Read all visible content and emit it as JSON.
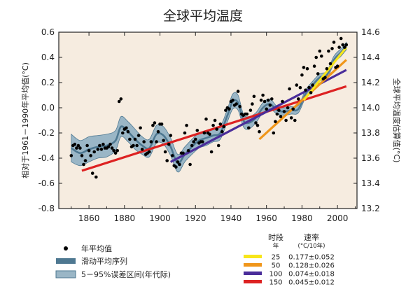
{
  "chart_data": {
    "type": "scatter",
    "title": "全球平均温度",
    "ylabel_left": "相对于1961－1990年平均值(°C)",
    "ylabel_right": "全球平均温度估算值(°C)",
    "xlabel": "",
    "xlim": [
      1843,
      2011
    ],
    "ylim_left": [
      -0.8,
      0.6
    ],
    "ylim_right": [
      13.2,
      14.6
    ],
    "x_ticks": [
      "1860",
      "1880",
      "1900",
      "1920",
      "1940",
      "1960",
      "1980",
      "2000"
    ],
    "y_ticks_left": [
      "0.6",
      "0.4",
      "0.2",
      "0.0",
      "-0.2",
      "-0.4",
      "-0.6",
      "-0.8"
    ],
    "y_ticks_right": [
      "14.6",
      "14.4",
      "14.2",
      "14.0",
      "13.8",
      "13.6",
      "13.4",
      "13.2"
    ],
    "background": "#f6ece0",
    "annual_points": {
      "x": [
        1850,
        1851,
        1852,
        1853,
        1854,
        1855,
        1856,
        1857,
        1858,
        1859,
        1860,
        1861,
        1862,
        1863,
        1864,
        1865,
        1866,
        1867,
        1868,
        1869,
        1870,
        1871,
        1872,
        1873,
        1874,
        1875,
        1876,
        1877,
        1878,
        1879,
        1880,
        1881,
        1882,
        1883,
        1884,
        1885,
        1886,
        1887,
        1888,
        1889,
        1890,
        1891,
        1892,
        1893,
        1894,
        1895,
        1896,
        1897,
        1898,
        1899,
        1900,
        1901,
        1902,
        1903,
        1904,
        1905,
        1906,
        1907,
        1908,
        1909,
        1910,
        1911,
        1912,
        1913,
        1914,
        1915,
        1916,
        1917,
        1918,
        1919,
        1920,
        1921,
        1922,
        1923,
        1924,
        1925,
        1926,
        1927,
        1928,
        1929,
        1930,
        1931,
        1932,
        1933,
        1934,
        1935,
        1936,
        1937,
        1938,
        1939,
        1940,
        1941,
        1942,
        1943,
        1944,
        1945,
        1946,
        1947,
        1948,
        1949,
        1950,
        1951,
        1952,
        1953,
        1954,
        1955,
        1956,
        1957,
        1958,
        1959,
        1960,
        1961,
        1962,
        1963,
        1964,
        1965,
        1966,
        1967,
        1968,
        1969,
        1970,
        1971,
        1972,
        1973,
        1974,
        1975,
        1976,
        1977,
        1978,
        1979,
        1980,
        1981,
        1982,
        1983,
        1984,
        1985,
        1986,
        1987,
        1988,
        1989,
        1990,
        1991,
        1992,
        1993,
        1994,
        1995,
        1996,
        1997,
        1998,
        1999,
        2000,
        2001,
        2002,
        2003,
        2004,
        2005
      ],
      "y": [
        -0.38,
        -0.3,
        -0.29,
        -0.32,
        -0.3,
        -0.32,
        -0.38,
        -0.45,
        -0.42,
        -0.3,
        -0.34,
        -0.38,
        -0.52,
        -0.35,
        -0.55,
        -0.33,
        -0.3,
        -0.33,
        -0.29,
        -0.32,
        -0.32,
        -0.31,
        -0.29,
        -0.32,
        -0.34,
        -0.36,
        -0.34,
        0.05,
        0.07,
        -0.2,
        -0.17,
        -0.16,
        -0.19,
        -0.25,
        -0.31,
        -0.3,
        -0.25,
        -0.3,
        -0.22,
        -0.16,
        -0.33,
        -0.27,
        -0.37,
        -0.36,
        -0.35,
        -0.27,
        -0.14,
        -0.12,
        -0.27,
        -0.19,
        -0.13,
        -0.13,
        -0.26,
        -0.35,
        -0.42,
        -0.29,
        -0.22,
        -0.38,
        -0.46,
        -0.47,
        -0.43,
        -0.45,
        -0.36,
        -0.36,
        -0.2,
        -0.14,
        -0.34,
        -0.45,
        -0.3,
        -0.27,
        -0.25,
        -0.18,
        -0.28,
        -0.27,
        -0.27,
        -0.2,
        -0.09,
        -0.2,
        -0.21,
        -0.35,
        -0.14,
        -0.1,
        -0.17,
        -0.3,
        -0.13,
        -0.19,
        -0.15,
        -0.02,
        -0.0,
        -0.01,
        0.05,
        0.06,
        0.02,
        0.03,
        0.13,
        0.01,
        -0.05,
        -0.06,
        -0.05,
        -0.05,
        -0.16,
        -0.02,
        0.03,
        0.09,
        -0.12,
        -0.14,
        -0.19,
        0.06,
        0.1,
        0.05,
        -0.01,
        0.06,
        0.02,
        0.07,
        -0.2,
        -0.11,
        -0.05,
        -0.02,
        -0.07,
        0.05,
        -0.03,
        -0.1,
        0.0,
        0.15,
        -0.08,
        -0.01,
        -0.1,
        0.18,
        0.07,
        0.16,
        0.26,
        0.32,
        0.14,
        0.31,
        0.16,
        0.12,
        0.18,
        0.33,
        0.4,
        0.27,
        0.45,
        0.41,
        0.23,
        0.24,
        0.31,
        0.45,
        0.35,
        0.47,
        0.52,
        0.32,
        0.33,
        0.48,
        0.55,
        0.5,
        0.48,
        0.5
      ],
      "color": "#000000"
    },
    "smoothed_series": {
      "x": [
        1850,
        1855,
        1860,
        1865,
        1870,
        1875,
        1878,
        1882,
        1886,
        1890,
        1894,
        1898,
        1902,
        1906,
        1910,
        1914,
        1918,
        1922,
        1926,
        1930,
        1934,
        1938,
        1941,
        1944,
        1947,
        1950,
        1954,
        1958,
        1962,
        1966,
        1970,
        1974,
        1978,
        1982,
        1986,
        1990,
        1994,
        1998,
        2002,
        2005
      ],
      "y": [
        -0.32,
        -0.36,
        -0.33,
        -0.31,
        -0.3,
        -0.26,
        -0.15,
        -0.19,
        -0.25,
        -0.3,
        -0.32,
        -0.21,
        -0.22,
        -0.31,
        -0.44,
        -0.37,
        -0.31,
        -0.26,
        -0.24,
        -0.22,
        -0.2,
        -0.06,
        0.05,
        0.04,
        -0.1,
        -0.12,
        -0.08,
        0.0,
        0.03,
        -0.02,
        -0.03,
        -0.02,
        -0.01,
        0.11,
        0.18,
        0.24,
        0.26,
        0.38,
        0.44,
        0.49
      ],
      "color": "#4e7891"
    },
    "uncertainty_halfwidth": [
      0.11,
      0.1,
      0.1,
      0.09,
      0.09,
      0.08,
      0.08,
      0.08,
      0.08,
      0.07,
      0.07,
      0.07,
      0.07,
      0.07,
      0.07,
      0.06,
      0.06,
      0.06,
      0.06,
      0.05,
      0.05,
      0.05,
      0.06,
      0.06,
      0.05,
      0.05,
      0.04,
      0.04,
      0.04,
      0.03,
      0.03,
      0.03,
      0.03,
      0.03,
      0.03,
      0.03,
      0.03,
      0.03,
      0.03,
      0.03
    ],
    "band_color": "#9ab6c6",
    "trend_lines": [
      {
        "period_years": "150",
        "rate": "0.045±0.012",
        "color": "#dd2222",
        "x": [
          1856,
          2005
        ],
        "y": [
          -0.5,
          0.17
        ]
      },
      {
        "period_years": "100",
        "rate": "0.074±0.018",
        "color": "#4a2d9a",
        "x": [
          1906,
          2005
        ],
        "y": [
          -0.43,
          0.3
        ]
      },
      {
        "period_years": "50",
        "rate": "0.128±0.026",
        "color": "#f0961a",
        "x": [
          1956,
          2005
        ],
        "y": [
          -0.25,
          0.38
        ]
      },
      {
        "period_years": "25",
        "rate": "0.177±0.052",
        "color": "#f7e61a",
        "x": [
          1981,
          2005
        ],
        "y": [
          0.06,
          0.48
        ]
      }
    ]
  },
  "legend": {
    "items": [
      {
        "label": "年平均值"
      },
      {
        "label": "滑动平均序列"
      },
      {
        "label": "5－95%误差区间(年代际)"
      }
    ]
  },
  "rate_table": {
    "period_header": "时段",
    "period_unit": "年",
    "rate_header": "速率",
    "rate_unit": "(°C/10年)"
  }
}
